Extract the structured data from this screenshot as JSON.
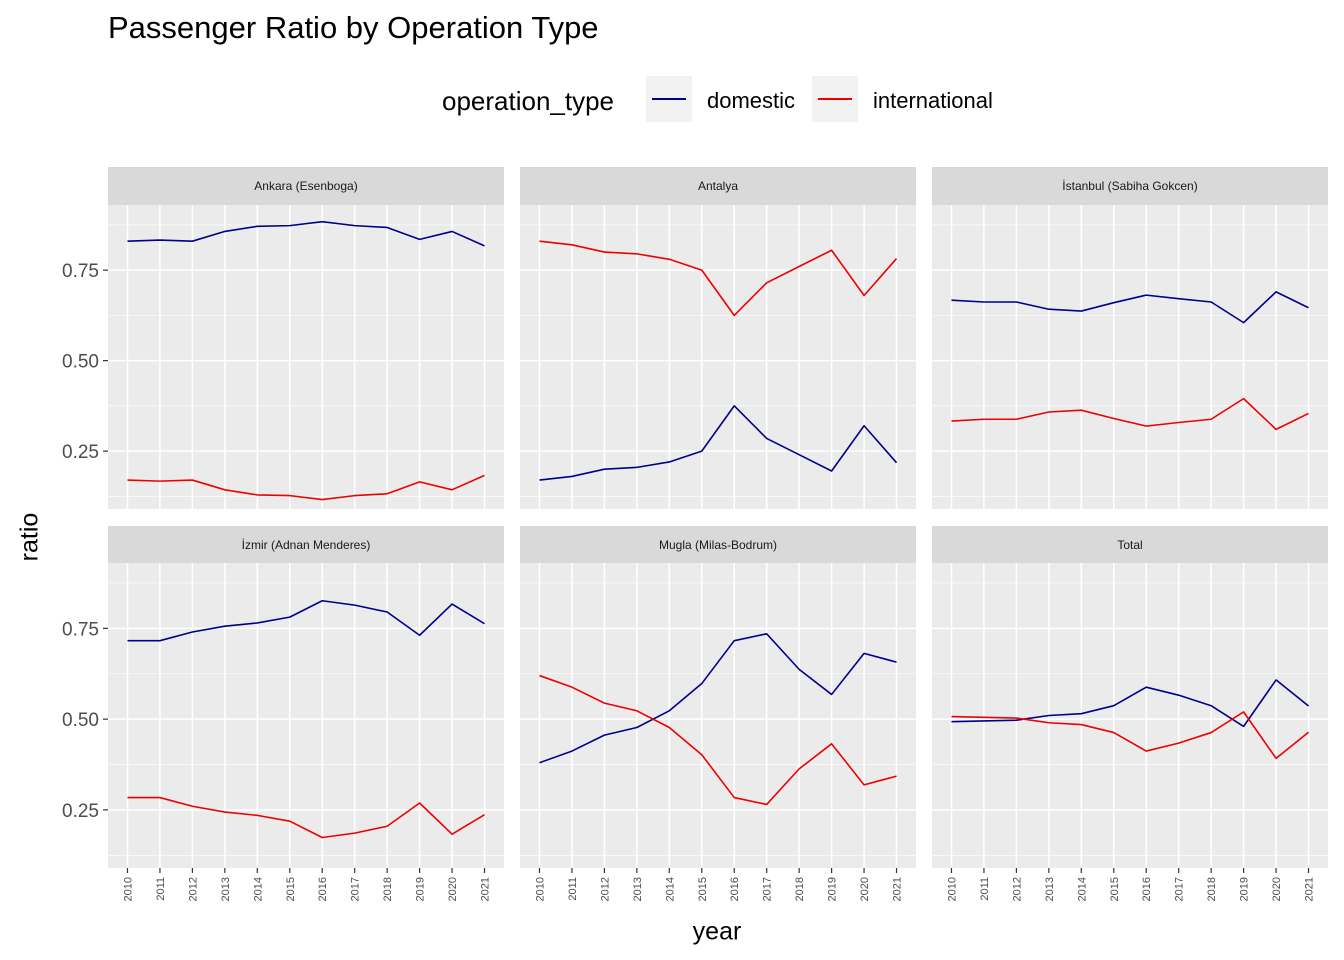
{
  "chart_data": {
    "type": "line",
    "title": "Passenger Ratio by Operation Type",
    "xlabel": "year",
    "ylabel": "ratio",
    "legend": {
      "title": "operation_type",
      "placement": "top",
      "entries": [
        {
          "name": "domestic",
          "color": "#00008b"
        },
        {
          "name": "international",
          "color": "#ee0000"
        }
      ]
    },
    "x": [
      2010,
      2011,
      2012,
      2013,
      2014,
      2015,
      2016,
      2017,
      2018,
      2019,
      2020,
      2021
    ],
    "x_ticks": [
      "2010",
      "2011",
      "2012",
      "2013",
      "2014",
      "2015",
      "2016",
      "2017",
      "2018",
      "2019",
      "2020",
      "2021"
    ],
    "ylim": [
      0.09,
      0.93
    ],
    "y_ticks": [
      "0.25",
      "0.50",
      "0.75"
    ],
    "y_tick_values": [
      0.25,
      0.5,
      0.75
    ],
    "grid": true,
    "panels": [
      {
        "name": "Ankara (Esenboga)",
        "series": [
          {
            "name": "domestic",
            "values": [
              0.83,
              0.833,
              0.83,
              0.857,
              0.871,
              0.873,
              0.884,
              0.873,
              0.868,
              0.835,
              0.857,
              0.817
            ]
          },
          {
            "name": "international",
            "values": [
              0.17,
              0.167,
              0.17,
              0.143,
              0.129,
              0.127,
              0.116,
              0.127,
              0.132,
              0.165,
              0.143,
              0.183
            ]
          }
        ]
      },
      {
        "name": "Antalya",
        "series": [
          {
            "name": "domestic",
            "values": [
              0.17,
              0.18,
              0.2,
              0.205,
              0.22,
              0.25,
              0.375,
              0.285,
              0.24,
              0.195,
              0.32,
              0.218
            ]
          },
          {
            "name": "international",
            "values": [
              0.83,
              0.82,
              0.8,
              0.795,
              0.78,
              0.75,
              0.625,
              0.715,
              0.76,
              0.805,
              0.68,
              0.782
            ]
          }
        ]
      },
      {
        "name": "İstanbul (Sabiha Gokcen)",
        "series": [
          {
            "name": "domestic",
            "values": [
              0.667,
              0.662,
              0.662,
              0.642,
              0.637,
              0.66,
              0.681,
              0.671,
              0.662,
              0.605,
              0.69,
              0.646
            ]
          },
          {
            "name": "international",
            "values": [
              0.333,
              0.338,
              0.338,
              0.358,
              0.363,
              0.34,
              0.319,
              0.329,
              0.338,
              0.395,
              0.31,
              0.354
            ]
          }
        ]
      },
      {
        "name": "İzmir (Adnan Menderes)",
        "series": [
          {
            "name": "domestic",
            "values": [
              0.716,
              0.716,
              0.74,
              0.756,
              0.765,
              0.781,
              0.826,
              0.814,
              0.795,
              0.731,
              0.817,
              0.763
            ]
          },
          {
            "name": "international",
            "values": [
              0.284,
              0.284,
              0.26,
              0.244,
              0.235,
              0.219,
              0.174,
              0.186,
              0.205,
              0.269,
              0.183,
              0.237
            ]
          }
        ]
      },
      {
        "name": "Mugla (Milas-Bodrum)",
        "series": [
          {
            "name": "domestic",
            "values": [
              0.38,
              0.412,
              0.456,
              0.477,
              0.523,
              0.598,
              0.716,
              0.735,
              0.637,
              0.568,
              0.681,
              0.657
            ]
          },
          {
            "name": "international",
            "values": [
              0.62,
              0.588,
              0.544,
              0.523,
              0.477,
              0.402,
              0.284,
              0.265,
              0.363,
              0.432,
              0.319,
              0.343
            ]
          }
        ]
      },
      {
        "name": "Total",
        "series": [
          {
            "name": "domestic",
            "values": [
              0.493,
              0.495,
              0.497,
              0.51,
              0.515,
              0.537,
              0.588,
              0.566,
              0.537,
              0.48,
              0.608,
              0.536
            ]
          },
          {
            "name": "international",
            "values": [
              0.507,
              0.505,
              0.503,
              0.49,
              0.485,
              0.463,
              0.412,
              0.434,
              0.463,
              0.52,
              0.392,
              0.464
            ]
          }
        ]
      }
    ]
  }
}
